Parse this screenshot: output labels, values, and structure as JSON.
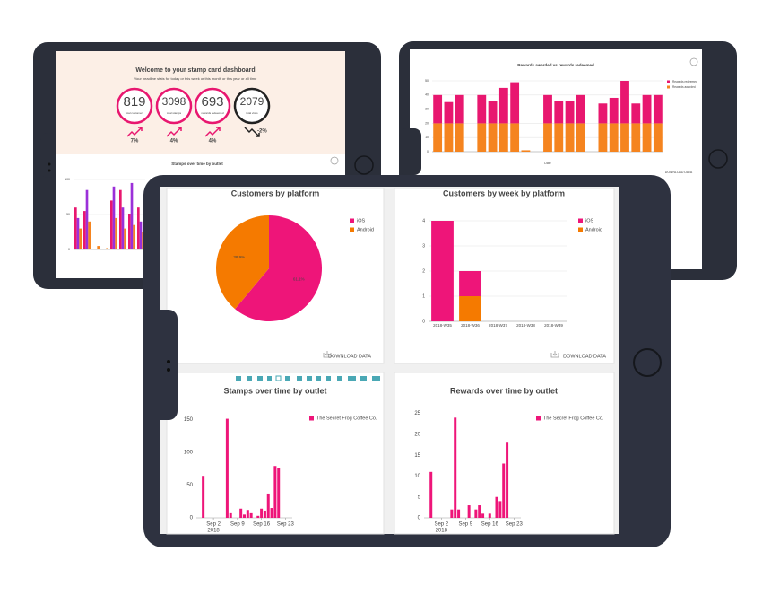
{
  "dashboard": {
    "title": "Welcome to your stamp card dashboard",
    "subtitle": "Your headline stats for today or this week or this month or this year or all time",
    "stats": [
      {
        "value": 819,
        "label": "total customers",
        "change": "7%",
        "color": "#e8176f"
      },
      {
        "value": 3098,
        "label": "total stamps",
        "change": "4%",
        "color": "#e8176f"
      },
      {
        "value": 693,
        "label": "rewards redeemed",
        "change": "4%",
        "color": "#e8176f"
      },
      {
        "value": 2079,
        "label": "total visits",
        "change": "-2%",
        "color": "#222222"
      }
    ]
  },
  "download_label": "DOWNLOAD DATA",
  "chart_data": [
    {
      "type": "bar",
      "title": "Stamps over time by outlet",
      "ylim": [
        0,
        100
      ],
      "yticks": [
        0,
        50,
        100
      ],
      "grid": true,
      "categories": [
        null,
        null,
        null,
        null,
        null,
        null,
        null,
        null
      ],
      "series": [
        {
          "color": "#e8176f",
          "values": [
            60,
            55,
            0,
            0,
            70,
            85,
            50,
            60
          ]
        },
        {
          "color": "#9b30d9",
          "values": [
            45,
            85,
            0,
            0,
            90,
            60,
            95,
            40
          ]
        },
        {
          "color": "#f5841f",
          "values": [
            30,
            40,
            5,
            2,
            45,
            30,
            35,
            25
          ]
        }
      ]
    },
    {
      "type": "bar",
      "stacked": true,
      "title": "Rewards awarded vs rewards redeemed",
      "xlabel": "Date",
      "ylim": [
        0,
        50
      ],
      "yticks": [
        0,
        10,
        20,
        30,
        40,
        50
      ],
      "grid": true,
      "legend": "top-right",
      "categories": [
        null,
        null,
        null,
        null,
        null,
        null,
        null,
        null,
        null,
        null,
        null,
        null,
        null,
        null,
        null,
        null,
        null,
        null,
        null,
        null,
        null
      ],
      "series": [
        {
          "name": "Rewards awarded",
          "color": "#f5841f",
          "values": [
            20,
            20,
            20,
            0,
            20,
            20,
            20,
            20,
            1,
            0,
            20,
            20,
            20,
            20,
            0,
            20,
            20,
            20,
            20,
            20,
            20
          ]
        },
        {
          "name": "Rewards redeemed",
          "color": "#e8176f",
          "values": [
            20,
            15,
            20,
            0,
            20,
            16,
            25,
            29,
            0,
            0,
            20,
            16,
            16,
            20,
            0,
            14,
            18,
            30,
            14,
            20,
            20
          ]
        }
      ]
    },
    {
      "type": "pie",
      "title": "Customers by platform",
      "legend": "top-right",
      "categories": [
        "iOS",
        "Android"
      ],
      "values": [
        61.1,
        38.9
      ],
      "value_labels": [
        "61.1%",
        "38.9%"
      ],
      "colors": [
        "#ee1579",
        "#f57a00"
      ]
    },
    {
      "type": "bar",
      "stacked": true,
      "title": "Customers by week by platform",
      "legend": "top-right",
      "ylim": [
        0,
        4
      ],
      "yticks": [
        0,
        1,
        2,
        3,
        4
      ],
      "grid": true,
      "categories": [
        "2018-W35",
        "2018-W36",
        "2018-W37",
        "2018-W38",
        "2018-W39"
      ],
      "series": [
        {
          "name": "Android",
          "color": "#f57a00",
          "values": [
            0,
            1,
            0,
            0,
            0
          ]
        },
        {
          "name": "iOS",
          "color": "#ee1579",
          "values": [
            4,
            1,
            0,
            0,
            0
          ]
        }
      ]
    },
    {
      "type": "bar",
      "title": "Stamps over time by outlet",
      "legend": "top-right",
      "grid": false,
      "ylim": [
        0,
        160
      ],
      "yticks": [
        0,
        50,
        100,
        150
      ],
      "xlim": [
        "2018-08-28",
        "2018-09-25"
      ],
      "xticks": [
        {
          "value": "2018-09-02",
          "label": "Sep 2"
        },
        {
          "value": "2018-09-09",
          "label": "Sep 9"
        },
        {
          "value": "2018-09-16",
          "label": "Sep 16"
        },
        {
          "value": "2018-09-23",
          "label": "Sep 23"
        }
      ],
      "x_year": "2018",
      "x": [
        "2018-08-30",
        "2018-09-06",
        "2018-09-07",
        "2018-09-10",
        "2018-09-11",
        "2018-09-12",
        "2018-09-13",
        "2018-09-15",
        "2018-09-16",
        "2018-09-17",
        "2018-09-18",
        "2018-09-19",
        "2018-09-20",
        "2018-09-21"
      ],
      "series": [
        {
          "name": "The Secret Frog Coffee Co.",
          "color": "#ee1579",
          "values": [
            64,
            151,
            7,
            14,
            5,
            12,
            7,
            3,
            14,
            11,
            37,
            15,
            79,
            76
          ]
        }
      ]
    },
    {
      "type": "bar",
      "title": "Rewards over time by outlet",
      "legend": "top-right",
      "grid": false,
      "ylim": [
        0,
        26
      ],
      "yticks": [
        0,
        5,
        10,
        15,
        20,
        25
      ],
      "xlim": [
        "2018-08-28",
        "2018-09-25"
      ],
      "xticks": [
        {
          "value": "2018-09-02",
          "label": "Sep 2"
        },
        {
          "value": "2018-09-09",
          "label": "Sep 9"
        },
        {
          "value": "2018-09-16",
          "label": "Sep 16"
        },
        {
          "value": "2018-09-23",
          "label": "Sep 23"
        }
      ],
      "x_year": "2018",
      "x": [
        "2018-08-30",
        "2018-09-05",
        "2018-09-06",
        "2018-09-07",
        "2018-09-10",
        "2018-09-12",
        "2018-09-13",
        "2018-09-14",
        "2018-09-16",
        "2018-09-18",
        "2018-09-19",
        "2018-09-20",
        "2018-09-21"
      ],
      "series": [
        {
          "name": "The Secret Frog Coffee Co.",
          "color": "#ee1579",
          "values": [
            11,
            2,
            24,
            2,
            3,
            2,
            3,
            1,
            1,
            5,
            4,
            13,
            18
          ]
        }
      ]
    }
  ]
}
